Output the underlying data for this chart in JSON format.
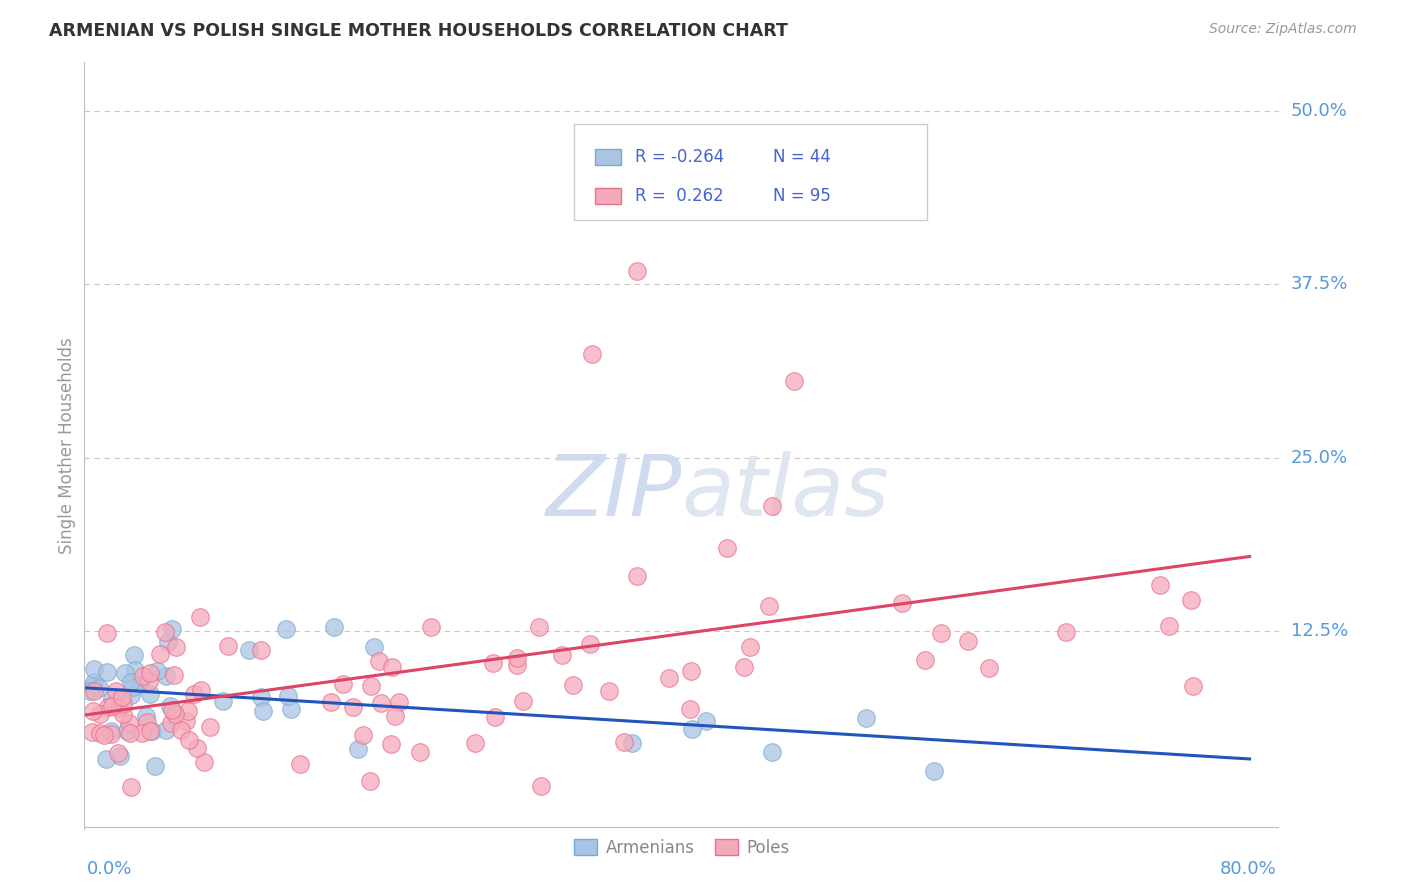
{
  "title": "ARMENIAN VS POLISH SINGLE MOTHER HOUSEHOLDS CORRELATION CHART",
  "source": "Source: ZipAtlas.com",
  "ylabel": "Single Mother Households",
  "armenian_color": "#aac4e4",
  "armenian_edge": "#7aaad0",
  "pole_color": "#f5aabb",
  "pole_edge": "#e8708a",
  "armenian_line_color": "#2255bb",
  "pole_line_color": "#dd4466",
  "grid_color": "#c8c8c8",
  "watermark_color": "#dde4f0",
  "background": "#ffffff",
  "xmin": 0.0,
  "xmax": 0.8,
  "ymin": -0.018,
  "ymax": 0.535,
  "yticks": [
    0.125,
    0.25,
    0.375,
    0.5
  ],
  "ytick_labels": [
    "12.5%",
    "25.0%",
    "37.5%",
    "50.0%"
  ],
  "right_label_color": "#5599dd",
  "arm_R": -0.264,
  "arm_N": 44,
  "pol_R": 0.262,
  "pol_N": 95
}
